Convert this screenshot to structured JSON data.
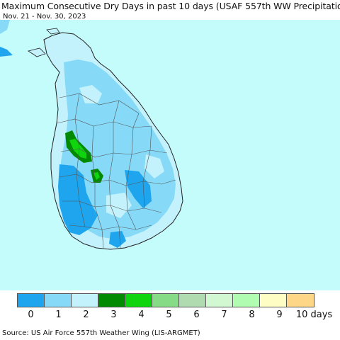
{
  "header": {
    "title": "Maximum Consecutive Dry Days in past 10 days (USAF 557th WW Precipitation)",
    "date_range": "Nov. 21 - Nov. 30, 2023"
  },
  "legend": {
    "items": [
      {
        "label": "0",
        "color": "#1ea5ee"
      },
      {
        "label": "1",
        "color": "#86daf8"
      },
      {
        "label": "2",
        "color": "#c4f2fc"
      },
      {
        "label": "3",
        "color": "#038a03"
      },
      {
        "label": "4",
        "color": "#0ed50e"
      },
      {
        "label": "5",
        "color": "#86dc86"
      },
      {
        "label": "6",
        "color": "#b0dab0"
      },
      {
        "label": "7",
        "color": "#d2f8d2"
      },
      {
        "label": "8",
        "color": "#b0fcb0"
      },
      {
        "label": "9",
        "color": "#fefec4"
      },
      {
        "label": "10 days",
        "color": "#fdd787"
      }
    ]
  },
  "map": {
    "background_color": "#c4fcfc",
    "region_note": "Sri Lanka"
  },
  "footer": {
    "source": "Source: US Air Force 557th Weather Wing (LIS-ARGMET)"
  }
}
